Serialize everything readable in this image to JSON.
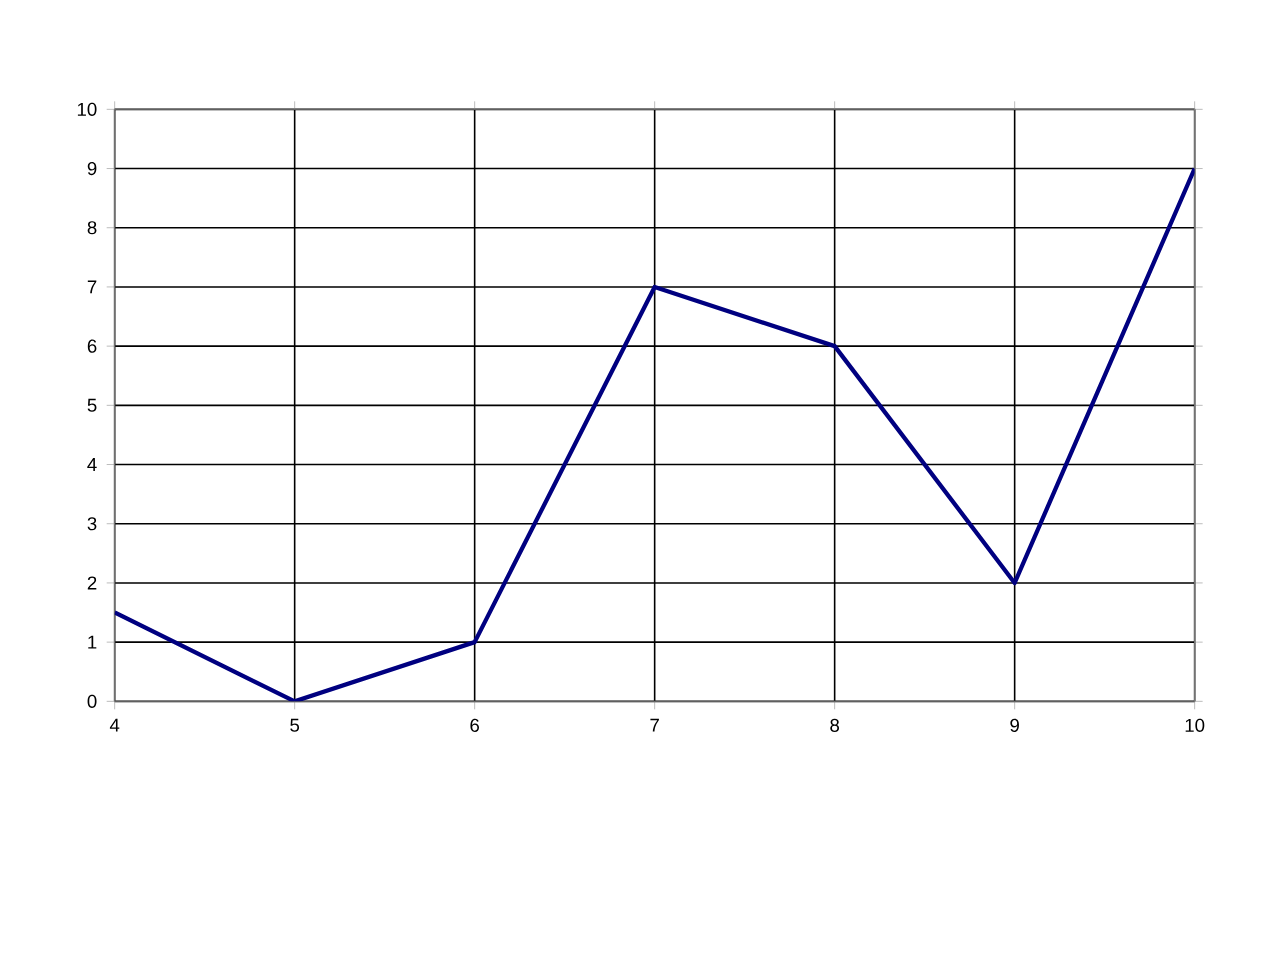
{
  "chart_data": {
    "type": "line",
    "x": [
      4,
      5,
      6,
      7,
      8,
      9,
      10
    ],
    "series": [
      {
        "color": "#000080",
        "values": [
          1.5,
          0,
          1,
          7,
          6,
          2,
          9
        ]
      }
    ],
    "xlim": [
      4,
      10
    ],
    "xticks": [
      4,
      5,
      6,
      7,
      8,
      9,
      10
    ],
    "ylim": [
      0,
      10
    ],
    "yticks": [
      0,
      1,
      2,
      3,
      4,
      5,
      6,
      7,
      8,
      9,
      10
    ],
    "grid": true,
    "marker": "none",
    "line_style": "solid"
  }
}
